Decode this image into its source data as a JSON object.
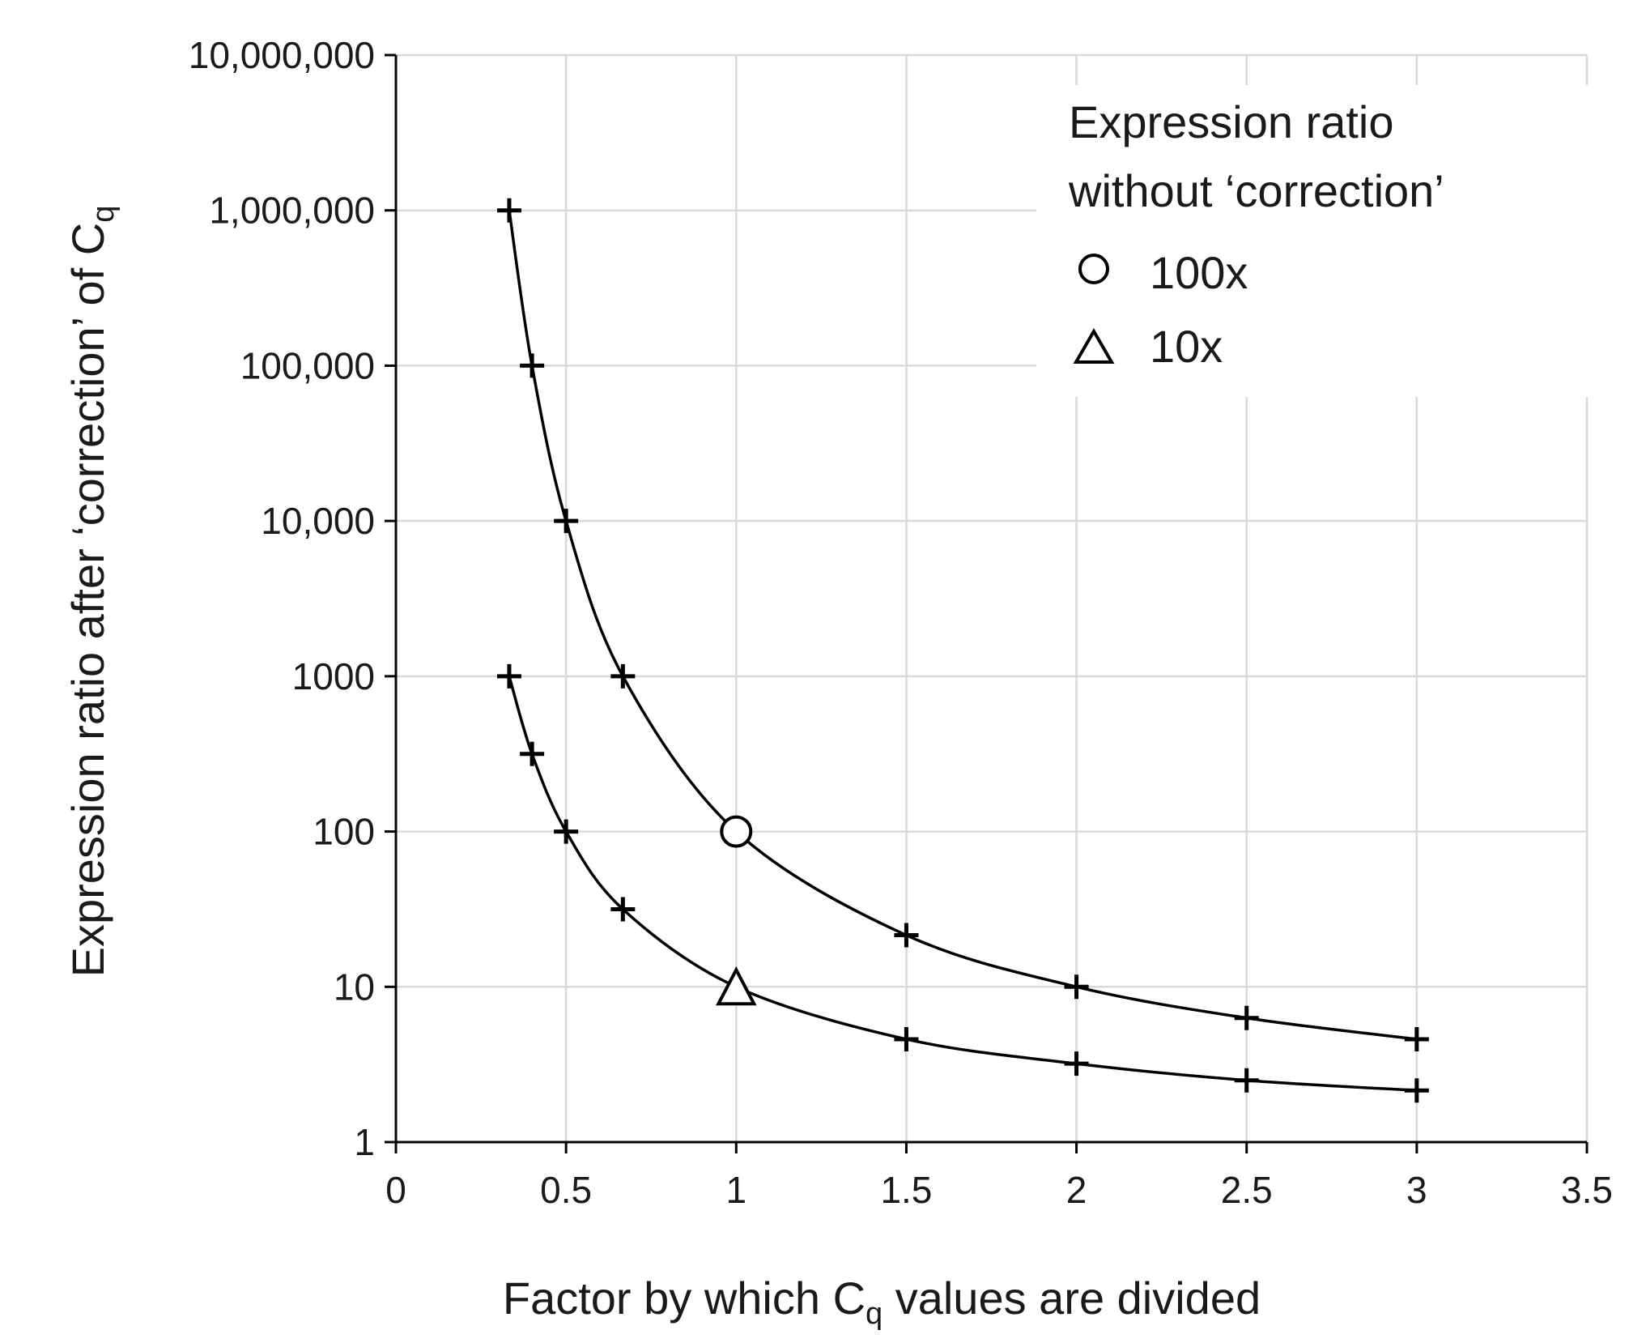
{
  "chart_data": {
    "type": "scatter",
    "xlabel": "Factor by which C",
    "xlabel_sub": "q",
    "xlabel_tail": " values are divided",
    "ylabel": "Expression ratio after ‘correction’ of C",
    "ylabel_sub": "q",
    "xlim": [
      0,
      3.5
    ],
    "ylim": [
      1,
      10000000
    ],
    "yscale": "log",
    "grid": true,
    "x_ticks": [
      0,
      0.5,
      1,
      1.5,
      2,
      2.5,
      3,
      3.5
    ],
    "x_tick_labels": [
      "0",
      "0.5",
      "1",
      "1.5",
      "2",
      "2.5",
      "3",
      "3.5"
    ],
    "y_ticks": [
      1,
      10,
      100,
      1000,
      10000,
      100000,
      1000000,
      10000000
    ],
    "y_tick_labels": [
      "1",
      "10",
      "100",
      "1000",
      "10,000",
      "100,000",
      "1,000,000",
      "10,000,000"
    ],
    "legend": {
      "title_line1": "Expression ratio",
      "title_line2": "without ‘correction’",
      "placement": "top-right",
      "entries": [
        "100x",
        "10x"
      ]
    },
    "series": [
      {
        "name": "100x",
        "marker": "circle",
        "highlight_x": 1,
        "x": [
          0.333,
          0.4,
          0.5,
          0.667,
          1,
          1.5,
          2,
          2.5,
          3
        ],
        "y": [
          1000000,
          100000,
          10000,
          1000,
          100,
          21.5,
          10,
          6.3,
          4.6
        ]
      },
      {
        "name": "10x",
        "marker": "triangle",
        "highlight_x": 1,
        "x": [
          0.333,
          0.4,
          0.5,
          0.667,
          1,
          1.5,
          2,
          2.5,
          3
        ],
        "y": [
          1000,
          316,
          100,
          31.6,
          10,
          4.6,
          3.2,
          2.5,
          2.15
        ]
      }
    ],
    "colors": {
      "lines": "#000000",
      "grid": "#d9d9d9"
    }
  }
}
